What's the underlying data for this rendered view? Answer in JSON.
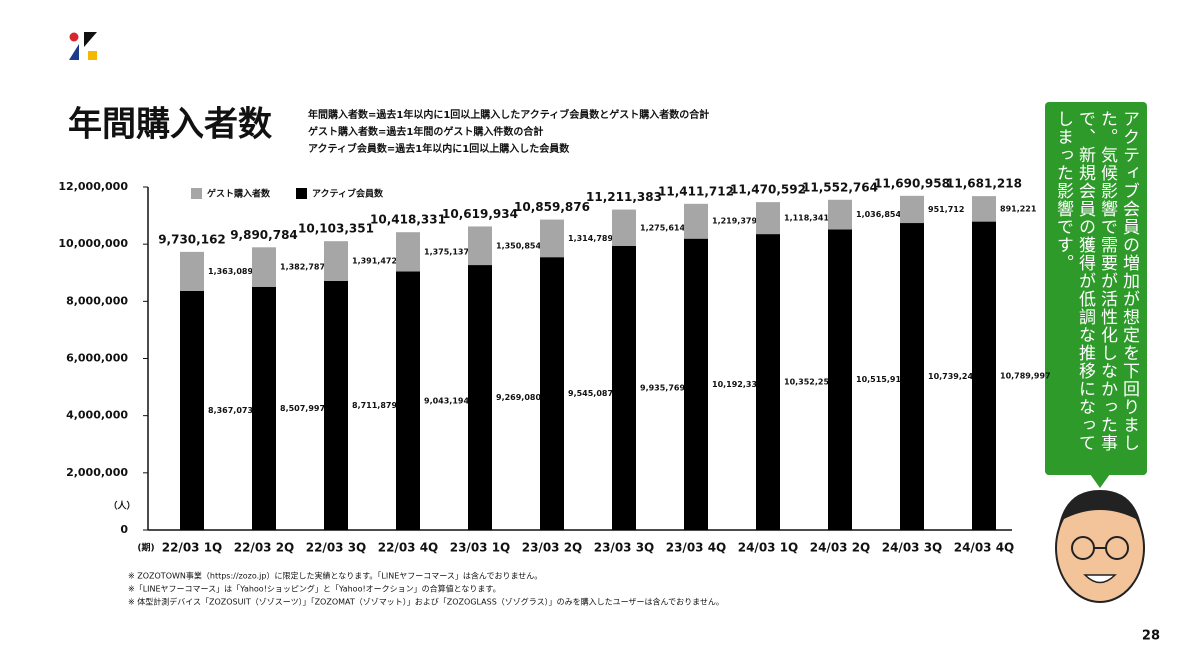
{
  "header": {
    "title": "年間購入者数",
    "definitions": [
      "年間購入者数=過去1年以内に1回以上購入したアクティブ会員数とゲスト購入者数の合計",
      "ゲスト購入者数=過去1年間のゲスト購入件数の合計",
      "アクティブ会員数=過去1年以内に1回以上購入した会員数"
    ]
  },
  "chart_data": {
    "type": "bar",
    "stacked": true,
    "categories": [
      "22/03 1Q",
      "22/03 2Q",
      "22/03 3Q",
      "22/03 4Q",
      "23/03 1Q",
      "23/03 2Q",
      "23/03 3Q",
      "23/03 4Q",
      "24/03 1Q",
      "24/03 2Q",
      "24/03 3Q",
      "24/03 4Q"
    ],
    "period_label": "(期)",
    "y_unit_label": "（人）",
    "series": [
      {
        "name": "アクティブ会員数",
        "color": "#000000",
        "values": [
          8367073,
          8507997,
          8711879,
          9043194,
          9269080,
          9545087,
          9935769,
          10192333,
          10352251,
          10515910,
          10739246,
          10789997
        ],
        "value_labels": [
          "8,367,073",
          "8,507,997",
          "8,711,879",
          "9,043,194",
          "9,269,080",
          "9,545,087",
          "9,935,769",
          "10,192,333",
          "10,352,251",
          "10,515,910",
          "10,739,246",
          "10,789,997"
        ]
      },
      {
        "name": "ゲスト購入者数",
        "color": "#a6a6a6",
        "values": [
          1363089,
          1382787,
          1391472,
          1375137,
          1350854,
          1314789,
          1275614,
          1219379,
          1118341,
          1036854,
          951712,
          891221
        ],
        "value_labels": [
          "1,363,089",
          "1,382,787",
          "1,391,472",
          "1,375,137",
          "1,350,854",
          "1,314,789",
          "1,275,614",
          "1,219,379",
          "1,118,341",
          "1,036,854",
          "951,712",
          "891,221"
        ]
      }
    ],
    "totals": [
      9730162,
      9890784,
      10103351,
      10418331,
      10619934,
      10859876,
      11211383,
      11411712,
      11470592,
      11552764,
      11690958,
      11681218
    ],
    "total_labels": [
      "9,730,162",
      "9,890,784",
      "10,103,351",
      "10,418,331",
      "10,619,934",
      "10,859,876",
      "11,211,383",
      "11,411,712",
      "11,470,592",
      "11,552,764",
      "11,690,958",
      "11,681,218"
    ],
    "ylim": [
      0,
      12000000
    ],
    "yticks": [
      0,
      {
        "value": 2000000,
        "label": "2,000,000"
      },
      {
        "value": 4000000,
        "label": "4,000,000"
      },
      {
        "value": 6000000,
        "label": "6,000,000"
      },
      {
        "value": 8000000,
        "label": "8,000,000"
      },
      {
        "value": 10000000,
        "label": "10,000,000"
      },
      {
        "value": 12000000,
        "label": "12,000,000"
      }
    ]
  },
  "callout": {
    "text": "アクティブ会員の増加が想定を下回りました。気候影響で需要が活性化しなかった事で、新規会員の獲得が低調な推移になってしまった影響です。"
  },
  "footnotes": [
    "※ ZOZOTOWN事業（https://zozo.jp）に限定した実績となります。「LINEヤフーコマース」は含んでおりません。",
    "※「LINEヤフーコマース」は「Yahoo!ショッピング」と「Yahoo!オークション」の合算値となります。",
    "※ 体型計測デバイス「ZOZOSUIT（ゾゾスーツ）」「ZOZOMAT（ゾゾマット）」および「ZOZOGLASS（ゾゾグラス）」のみを購入したユーザーは含んでおりません。"
  ],
  "page_number": "28"
}
